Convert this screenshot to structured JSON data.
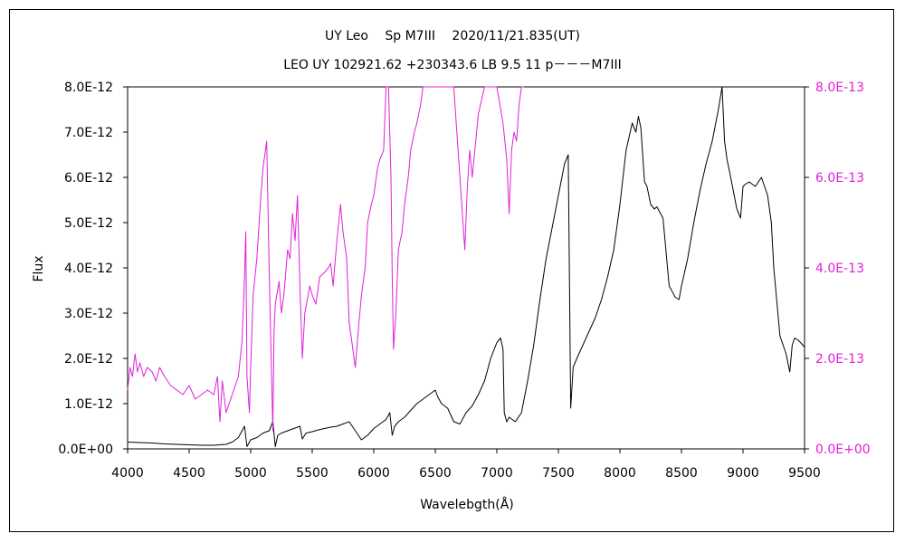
{
  "chart_data": {
    "type": "line",
    "title": "UY Leo　 Sp M7III　 2020/11/21.835(UT)",
    "subtitle": "LEO UY 102921.62 +230343.6 LB 9.5 11 p－－－M7III",
    "xlabel": "Wavelebgth(Å)",
    "ylabel": "Flux",
    "xlim": [
      4000,
      9500
    ],
    "ylim": [
      0,
      8e-12
    ],
    "y2lim": [
      0,
      8e-13
    ],
    "xticks": [
      "4000",
      "4500",
      "5000",
      "5500",
      "6000",
      "6500",
      "7000",
      "7500",
      "8000",
      "8500",
      "9000",
      "9500"
    ],
    "xtick_values": [
      4000,
      4500,
      5000,
      5500,
      6000,
      6500,
      7000,
      7500,
      8000,
      8500,
      9000,
      9500
    ],
    "yticks": [
      "0.0E+00",
      "1.0E-12",
      "2.0E-12",
      "3.0E-12",
      "4.0E-12",
      "5.0E-12",
      "6.0E-12",
      "7.0E-12",
      "8.0E-12"
    ],
    "ytick_values": [
      0,
      1e-12,
      2e-12,
      3e-12,
      4e-12,
      5e-12,
      6e-12,
      7e-12,
      8e-12
    ],
    "y2ticks": [
      "0.0E+00",
      "2.0E-13",
      "4.0E-13",
      "6.0E-13",
      "8.0E-13"
    ],
    "y2tick_values": [
      0,
      2e-13,
      4e-13,
      6e-13,
      8e-13
    ],
    "colors": {
      "primary": "#000000",
      "secondary": "#e020d8",
      "grid": "#000000"
    },
    "series": [
      {
        "axis": "left",
        "color": "#000000",
        "x": [
          4000,
          4100,
          4200,
          4300,
          4400,
          4500,
          4600,
          4700,
          4800,
          4850,
          4900,
          4950,
          4970,
          4990,
          5000,
          5050,
          5100,
          5150,
          5180,
          5200,
          5220,
          5250,
          5300,
          5350,
          5400,
          5420,
          5450,
          5500,
          5550,
          5600,
          5650,
          5700,
          5750,
          5800,
          5850,
          5900,
          5950,
          6000,
          6050,
          6100,
          6130,
          6150,
          6170,
          6200,
          6250,
          6300,
          6350,
          6400,
          6450,
          6500,
          6520,
          6550,
          6600,
          6650,
          6700,
          6750,
          6800,
          6850,
          6900,
          6950,
          7000,
          7030,
          7050,
          7060,
          7080,
          7100,
          7150,
          7200,
          7250,
          7300,
          7350,
          7400,
          7450,
          7500,
          7550,
          7580,
          7600,
          7620,
          7650,
          7700,
          7750,
          7800,
          7850,
          7900,
          7950,
          8000,
          8050,
          8100,
          8130,
          8150,
          8170,
          8200,
          8220,
          8250,
          8280,
          8300,
          8350,
          8400,
          8450,
          8480,
          8500,
          8550,
          8600,
          8650,
          8700,
          8750,
          8800,
          8830,
          8850,
          8870,
          8900,
          8950,
          8980,
          9000,
          9020,
          9050,
          9100,
          9150,
          9200,
          9230,
          9250,
          9300,
          9350,
          9380,
          9400,
          9420,
          9450,
          9500
        ],
        "y": [
          1.5e-13,
          1.4e-13,
          1.3e-13,
          1.1e-13,
          1e-13,
          9e-14,
          8e-14,
          8e-14,
          1e-13,
          1.5e-13,
          2.5e-13,
          5e-13,
          5e-14,
          1.5e-13,
          2e-13,
          2.5e-13,
          3.5e-13,
          4e-13,
          6e-13,
          5e-14,
          3e-13,
          3.5e-13,
          4e-13,
          4.5e-13,
          5e-13,
          2.2e-13,
          3.5e-13,
          3.8e-13,
          4.2e-13,
          4.5e-13,
          4.8e-13,
          5e-13,
          5.5e-13,
          6e-13,
          4e-13,
          2e-13,
          3e-13,
          4.5e-13,
          5.5e-13,
          6.5e-13,
          8e-13,
          3e-13,
          5e-13,
          6e-13,
          7e-13,
          8.5e-13,
          1e-12,
          1.1e-12,
          1.2e-12,
          1.3e-12,
          1.15e-12,
          1e-12,
          9e-13,
          6e-13,
          5.5e-13,
          8e-13,
          9.5e-13,
          1.2e-12,
          1.5e-12,
          2e-12,
          2.35e-12,
          2.45e-12,
          2.2e-12,
          8e-13,
          6e-13,
          7e-13,
          6e-13,
          8e-13,
          1.5e-12,
          2.3e-12,
          3.3e-12,
          4.2e-12,
          4.9e-12,
          5.6e-12,
          6.3e-12,
          6.5e-12,
          9e-13,
          1.8e-12,
          2e-12,
          2.3e-12,
          2.6e-12,
          2.9e-12,
          3.3e-12,
          3.8e-12,
          4.4e-12,
          5.4e-12,
          6.6e-12,
          7.2e-12,
          7e-12,
          7.35e-12,
          7.1e-12,
          5.9e-12,
          5.8e-12,
          5.4e-12,
          5.3e-12,
          5.35e-12,
          5.1e-12,
          3.6e-12,
          3.35e-12,
          3.3e-12,
          3.6e-12,
          4.2e-12,
          5e-12,
          5.7e-12,
          6.3e-12,
          6.8e-12,
          7.5e-12,
          8e-12,
          6.8e-12,
          6.4e-12,
          6e-12,
          5.3e-12,
          5.1e-12,
          5.8e-12,
          5.85e-12,
          5.9e-12,
          5.8e-12,
          6e-12,
          5.6e-12,
          5e-12,
          4e-12,
          2.5e-12,
          2.1e-12,
          1.7e-12,
          2.3e-12,
          2.45e-12,
          2.4e-12,
          2.25e-12
        ]
      },
      {
        "axis": "right",
        "color": "#e020d8",
        "x": [
          4000,
          4020,
          4040,
          4060,
          4080,
          4100,
          4130,
          4160,
          4200,
          4230,
          4260,
          4300,
          4350,
          4400,
          4450,
          4500,
          4550,
          4600,
          4650,
          4700,
          4730,
          4750,
          4770,
          4800,
          4850,
          4900,
          4930,
          4950,
          4960,
          4970,
          4990,
          5000,
          5020,
          5050,
          5080,
          5100,
          5130,
          5150,
          5170,
          5180,
          5190,
          5200,
          5230,
          5250,
          5270,
          5300,
          5320,
          5340,
          5360,
          5380,
          5400,
          5420,
          5440,
          5460,
          5480,
          5500,
          5530,
          5560,
          5600,
          5630,
          5650,
          5670,
          5700,
          5730,
          5750,
          5780,
          5800,
          5830,
          5850,
          5880,
          5900,
          5930,
          5950,
          5980,
          6000,
          6030,
          6050,
          6080,
          6100,
          6120,
          6140,
          6150,
          6160,
          6180,
          6200,
          6230,
          6250,
          6280,
          6300,
          6330,
          6350,
          6380,
          6400,
          6430,
          6450,
          6480,
          6500,
          6550,
          6600,
          6650,
          6700,
          6720,
          6740,
          6760,
          6780,
          6800,
          6850,
          6900,
          6950,
          7000,
          7050,
          7080,
          7100,
          7120,
          7140,
          7160,
          7180,
          7200,
          7220
        ],
        "y": [
          1.3e-13,
          1.8e-13,
          1.6e-13,
          2.1e-13,
          1.7e-13,
          1.9e-13,
          1.6e-13,
          1.8e-13,
          1.7e-13,
          1.5e-13,
          1.8e-13,
          1.6e-13,
          1.4e-13,
          1.3e-13,
          1.2e-13,
          1.4e-13,
          1.1e-13,
          1.2e-13,
          1.3e-13,
          1.2e-13,
          1.6e-13,
          6e-14,
          1.5e-13,
          8e-14,
          1.2e-13,
          1.6e-13,
          2.4e-13,
          3.8e-13,
          4.8e-13,
          1.6e-13,
          8e-14,
          1.8e-13,
          3.4e-13,
          4.2e-13,
          5.5e-13,
          6.2e-13,
          6.8e-13,
          4e-13,
          1.6e-13,
          4e-14,
          2.6e-13,
          3.2e-13,
          3.7e-13,
          3e-13,
          3.4e-13,
          4.4e-13,
          4.2e-13,
          5.2e-13,
          4.6e-13,
          5.6e-13,
          3.6e-13,
          2e-13,
          3e-13,
          3.3e-13,
          3.6e-13,
          3.4e-13,
          3.2e-13,
          3.8e-13,
          3.9e-13,
          4e-13,
          4.1e-13,
          3.6e-13,
          4.6e-13,
          5.4e-13,
          4.8e-13,
          4.2e-13,
          2.8e-13,
          2.2e-13,
          1.8e-13,
          2.8e-13,
          3.4e-13,
          4e-13,
          5e-13,
          5.4e-13,
          5.6e-13,
          6.2e-13,
          6.4e-13,
          6.6e-13,
          8e-13,
          8e-13,
          6e-13,
          3.8e-13,
          2.2e-13,
          3e-13,
          4.4e-13,
          4.8e-13,
          5.4e-13,
          6e-13,
          6.6e-13,
          7e-13,
          7.2e-13,
          7.6e-13,
          8e-13,
          8e-13,
          8e-13,
          8e-13,
          8e-13,
          8e-13,
          8e-13,
          8e-13,
          6e-13,
          5.2e-13,
          4.4e-13,
          5.8e-13,
          6.6e-13,
          6e-13,
          7.4e-13,
          8e-13,
          8e-13,
          8e-13,
          7.2e-13,
          6.4e-13,
          5.2e-13,
          6.6e-13,
          7e-13,
          6.8e-13,
          7.6e-13,
          8e-13,
          8e-13
        ]
      }
    ]
  }
}
